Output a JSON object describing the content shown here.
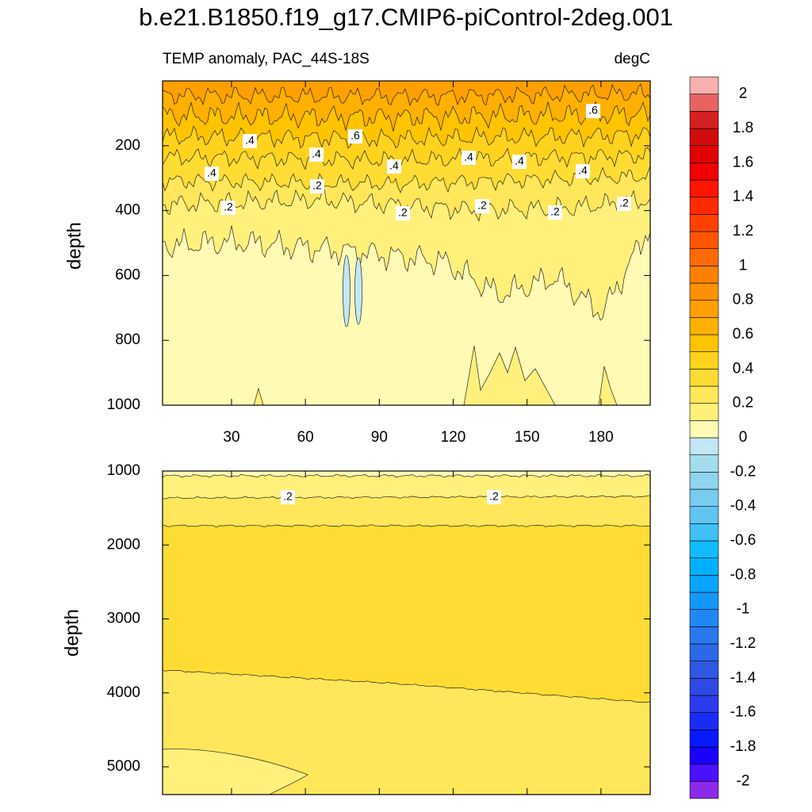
{
  "chart_data": {
    "type": "contour",
    "title": "b.e21.B1850.f19_g17.CMIP6-piControl-2deg.001",
    "subtitle": "TEMP anomaly, PAC_44S-18S",
    "units": "degC",
    "panels": [
      {
        "ylabel": "depth",
        "ylim": [
          0,
          1000
        ],
        "yticks": [
          200,
          400,
          600,
          800,
          1000
        ],
        "xlim": [
          2,
          200
        ],
        "xticks": [
          30,
          60,
          90,
          120,
          150,
          180
        ],
        "contour_labels": [
          {
            "value": 0.4,
            "label": ".4"
          },
          {
            "value": 0.6,
            "label": ".6"
          },
          {
            "value": 0.4,
            "label": ".4"
          },
          {
            "value": 0.4,
            "label": ".4"
          },
          {
            "value": 0.4,
            "label": ".4"
          },
          {
            "value": 0.4,
            "label": ".4"
          },
          {
            "value": 0.4,
            "label": ".4"
          },
          {
            "value": 0.4,
            "label": ".4"
          },
          {
            "value": 0.6,
            "label": ".6"
          },
          {
            "value": 0.2,
            "label": ".2"
          },
          {
            "value": 0.2,
            "label": ".2"
          },
          {
            "value": 0.2,
            "label": ".2"
          },
          {
            "value": 0.2,
            "label": ".2"
          },
          {
            "value": 0.2,
            "label": ".2"
          },
          {
            "value": 0.2,
            "label": ".2"
          }
        ]
      },
      {
        "ylabel": "depth",
        "ylim": [
          1000,
          5375
        ],
        "yticks": [
          1000,
          2000,
          3000,
          4000,
          5000
        ],
        "xlim": [
          2,
          200
        ],
        "contour_labels": [
          {
            "value": 0.2,
            "label": ".2"
          },
          {
            "value": 0.2,
            "label": ".2"
          }
        ]
      }
    ],
    "colorbar": {
      "levels": [
        -2,
        -1.9,
        -1.8,
        -1.7,
        -1.6,
        -1.5,
        -1.4,
        -1.3,
        -1.2,
        -1.1,
        -1,
        -0.9,
        -0.8,
        -0.7,
        -0.6,
        -0.5,
        -0.4,
        -0.3,
        -0.2,
        -0.1,
        0,
        0.1,
        0.2,
        0.3,
        0.4,
        0.5,
        0.6,
        0.7,
        0.8,
        0.9,
        1,
        1.1,
        1.2,
        1.3,
        1.4,
        1.5,
        1.6,
        1.7,
        1.8,
        1.9,
        2
      ],
      "ticks": [
        -2,
        -1.8,
        -1.6,
        -1.4,
        -1.2,
        -1,
        -0.8,
        -0.6,
        -0.4,
        -0.2,
        0,
        0.2,
        0.4,
        0.6,
        0.8,
        1,
        1.2,
        1.4,
        1.6,
        1.8,
        2
      ],
      "colors": [
        "#8b2be8",
        "#4a10ff",
        "#1a00ff",
        "#0a18ff",
        "#1a2cf4",
        "#2a3cec",
        "#3048e4",
        "#3058e0",
        "#2c68e8",
        "#2878ee",
        "#2088f4",
        "#1496fa",
        "#08a4ff",
        "#00b0ff",
        "#10bcfc",
        "#40c0f4",
        "#60c4f0",
        "#78ccf0",
        "#90d4ee",
        "#a4dcee",
        "#c4e6f4",
        "#fffbb4",
        "#fff07c",
        "#ffe65a",
        "#ffdc34",
        "#ffd21e",
        "#ffc400",
        "#ffb000",
        "#ffa000",
        "#ff9000",
        "#ff8000",
        "#ff6a00",
        "#ff5500",
        "#ff4000",
        "#ff2a00",
        "#ff1400",
        "#f00000",
        "#e00000",
        "#d00c0c",
        "#d42020",
        "#e86262",
        "#f8b0b0"
      ]
    }
  }
}
